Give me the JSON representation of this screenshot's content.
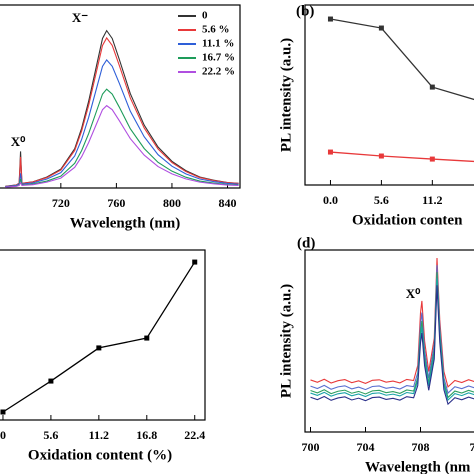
{
  "chart_data": [
    {
      "type": "line",
      "xlabel": "Wavelength (nm)",
      "x": [
        680,
        688,
        690,
        691,
        692,
        700,
        710,
        720,
        730,
        735,
        740,
        745,
        750,
        753,
        757,
        762,
        770,
        780,
        790,
        800,
        810,
        820,
        830,
        840,
        848
      ],
      "xlim": [
        669,
        849
      ],
      "xticks": [
        720,
        760,
        800,
        840
      ],
      "ylim": [
        0,
        100
      ],
      "annotations": [
        "X⁻",
        "X⁰"
      ],
      "legend": "upper right",
      "series": [
        {
          "name": "0",
          "color": "#333333",
          "values": [
            0.9,
            1.7,
            2.6,
            20,
            2.6,
            3.4,
            6,
            10.3,
            21.5,
            32.7,
            47.3,
            64.5,
            81.7,
            86,
            81.7,
            70.5,
            51.6,
            34.4,
            22.4,
            14.6,
            9.5,
            6,
            4.3,
            3,
            2.6
          ]
        },
        {
          "name": "5.6 %",
          "color": "#e8393a",
          "values": [
            0.8,
            1.6,
            2.5,
            17,
            2.5,
            3.3,
            5.7,
            9.8,
            20.5,
            31.2,
            45.1,
            61.5,
            77.9,
            82,
            77.9,
            67.2,
            49.2,
            32.8,
            21.3,
            13.9,
            9,
            5.7,
            4.1,
            2.9,
            2.5
          ]
        },
        {
          "name": "11.1 %",
          "color": "#2e5fd8",
          "values": [
            0.7,
            1.4,
            2.1,
            8,
            2.1,
            2.8,
            4.9,
            8.4,
            17.5,
            26.6,
            38.5,
            52.5,
            66.5,
            70,
            66.5,
            57.4,
            42,
            28,
            18.2,
            11.9,
            7.7,
            4.9,
            3.5,
            2.5,
            2.1
          ]
        },
        {
          "name": "16.7 %",
          "color": "#1e9c5a",
          "values": [
            0.5,
            1.1,
            1.6,
            5,
            1.6,
            2.2,
            3.8,
            6.5,
            13.5,
            20.5,
            29.7,
            40.5,
            51.3,
            54,
            51.3,
            44.3,
            32.4,
            21.6,
            14,
            9.2,
            5.9,
            3.8,
            2.7,
            1.9,
            1.6
          ]
        },
        {
          "name": "22.2 %",
          "color": "#b04fe0",
          "values": [
            0.5,
            0.9,
            1.4,
            3,
            1.4,
            1.8,
            3.2,
            5.4,
            11.3,
            17.1,
            24.8,
            33.8,
            42.8,
            45,
            42.8,
            36.9,
            27,
            18,
            11.7,
            7.7,
            5,
            3.2,
            2.3,
            1.6,
            1.4
          ]
        }
      ]
    },
    {
      "type": "line",
      "panel_label": "(b)",
      "xlabel": "Oxidation conten",
      "ylabel": "PL intensity (a.u.)",
      "x": [
        0,
        5.6,
        11.2,
        16.8
      ],
      "xlim": [
        -2.8,
        18.2
      ],
      "xticks": [
        {
          "value": 0,
          "label": "0.0"
        },
        5.6,
        11.2
      ],
      "ylim": [
        0,
        100
      ],
      "markers": true,
      "series": [
        {
          "color": "#333333",
          "values": [
            92.2,
            87.2,
            54.4,
            46
          ]
        },
        {
          "color": "#e8393a",
          "values": [
            18.3,
            16.1,
            14.4,
            12.8
          ]
        }
      ]
    },
    {
      "type": "line",
      "xlabel": "Oxidation content (%)",
      "x": [
        0,
        5.6,
        11.2,
        16.8,
        22.4
      ],
      "xlim": [
        -2.8,
        23.6
      ],
      "xticks": [
        0,
        5.6,
        11.2,
        16.8,
        22.4
      ],
      "ylim": [
        0,
        100
      ],
      "markers": true,
      "series": [
        {
          "color": "#000000",
          "values": [
            4.7,
            22.9,
            42.4,
            48.2,
            92.9
          ]
        }
      ]
    },
    {
      "type": "line",
      "panel_label": "(d)",
      "xlabel": "Wavelength (nm",
      "ylabel": "PL intensity (a.u.)",
      "x": [
        700,
        700.5,
        701,
        701.5,
        702,
        702.5,
        703,
        703.5,
        704,
        704.5,
        705,
        705.5,
        706,
        706.5,
        707,
        707.5,
        707.8,
        708,
        708.1,
        708.3,
        708.6,
        709,
        709.2,
        709.4,
        709.7,
        710,
        710.5,
        711,
        711.5,
        712,
        712.5,
        713
      ],
      "xlim": [
        699.6,
        714
      ],
      "xticks": [
        700,
        704,
        708,
        {
          "value": 712,
          "label": "71"
        }
      ],
      "ylim": [
        0,
        100
      ],
      "annotations": [
        "X⁰"
      ],
      "series": [
        {
          "color": "#e8393a",
          "values": [
            28.6,
            27.3,
            29,
            26.9,
            28.2,
            28.8,
            27.1,
            28.1,
            26.7,
            28.4,
            28.7,
            27.4,
            28,
            27,
            28.9,
            28.3,
            36.6,
            65.4,
            72,
            49.9,
            33.2,
            51.5,
            95.6,
            61.7,
            33.2,
            24.8,
            28.3,
            27.2,
            28.7,
            27.5,
            28.5,
            27.3
          ]
        },
        {
          "color": "#5a6fd0",
          "values": [
            25.2,
            23.9,
            25.6,
            23.5,
            24.8,
            25.4,
            23.7,
            24.7,
            23.3,
            25,
            25.3,
            24,
            24.6,
            23.6,
            25.5,
            24.9,
            32.6,
            59.4,
            65.6,
            45,
            29.5,
            48,
            91.7,
            58.1,
            29.8,
            21.4,
            24.9,
            23.8,
            25.3,
            24.1,
            25.1,
            23.9
          ]
        },
        {
          "color": "#2fa060",
          "values": [
            22.8,
            21.5,
            23.2,
            21.1,
            22.4,
            23,
            21.3,
            22.3,
            20.9,
            22.6,
            22.9,
            21.6,
            22.2,
            21.2,
            23.1,
            22.5,
            29.8,
            55.2,
            61,
            41.5,
            26.9,
            45,
            87.8,
            54.9,
            27.3,
            19,
            22.5,
            21.4,
            22.9,
            21.7,
            22.7,
            21.5
          ]
        },
        {
          "color": "#1aa3a8",
          "values": [
            21.4,
            20.1,
            21.8,
            19.7,
            21,
            21.6,
            19.9,
            20.9,
            19.5,
            21.2,
            21.5,
            20.2,
            20.8,
            19.8,
            21.7,
            21.1,
            28,
            52.2,
            57.8,
            39.2,
            25.3,
            42.9,
            84.4,
            52.5,
            25.7,
            17.6,
            21.1,
            20,
            21.5,
            20.3,
            21.3,
            20.1
          ]
        },
        {
          "color": "#2a2f8a",
          "values": [
            19.1,
            17.8,
            19.5,
            17.4,
            18.7,
            19.3,
            17.6,
            18.6,
            17.2,
            18.9,
            19.2,
            17.9,
            18.5,
            17.5,
            19.4,
            18.8,
            25.5,
            49,
            54.4,
            36.4,
            22.9,
            40.1,
            80.6,
            49.5,
            23.3,
            15.3,
            18.8,
            17.7,
            19.2,
            18,
            19,
            17.8
          ]
        }
      ]
    }
  ]
}
